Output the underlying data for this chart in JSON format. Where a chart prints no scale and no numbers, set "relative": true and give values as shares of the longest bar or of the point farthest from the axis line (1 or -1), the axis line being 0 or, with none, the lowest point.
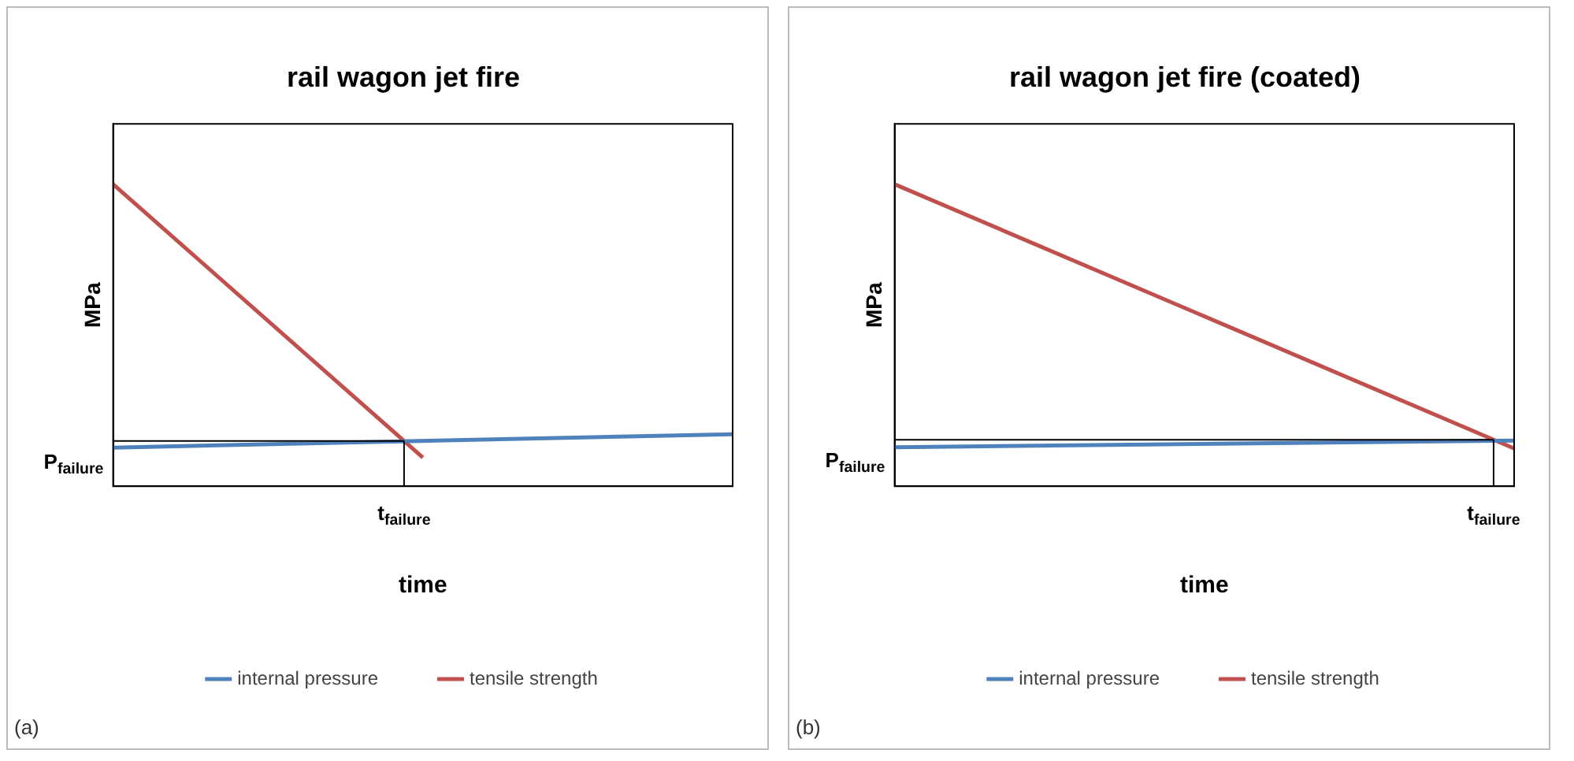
{
  "chart_data": [
    {
      "type": "line",
      "title": "rail wagon jet fire",
      "xlabel": "time",
      "ylabel": "MPa",
      "relative": true,
      "legend": "bottom",
      "marker": "none",
      "line_style": "solid",
      "categories": [
        null,
        null,
        null,
        null,
        null,
        null,
        null,
        null,
        null,
        null,
        null,
        null,
        null,
        null,
        null,
        null,
        null,
        null,
        null,
        null,
        null
      ],
      "series": [
        {
          "name": "internal pressure",
          "color": "#4f81bd",
          "values": [
            0.128,
            null,
            null,
            null,
            null,
            null,
            null,
            null,
            null,
            null,
            null,
            null,
            null,
            null,
            null,
            null,
            null,
            null,
            null,
            null,
            0.172
          ]
        },
        {
          "name": "tensile strength",
          "color": "#c0504d",
          "values": [
            1,
            null,
            null,
            null,
            null,
            null,
            null,
            null,
            null,
            null,
            0.095,
            null,
            null,
            null,
            null,
            null,
            null,
            null,
            null,
            null,
            null
          ]
        }
      ],
      "ref_lines": [
        {
          "axis": "y",
          "value": 0.15,
          "label": "P$_{failure}$",
          "color": "#000000"
        }
      ],
      "annotations": [
        {
          "text": "t$_{failure}$",
          "y": 0.15
        },
        "(a)"
      ]
    },
    {
      "type": "line",
      "title": "rail wagon jet fire (coated)",
      "xlabel": "time",
      "ylabel": "MPa",
      "relative": true,
      "legend": "bottom",
      "marker": "none",
      "line_style": "solid",
      "categories": [
        null,
        null,
        null,
        null,
        null,
        null,
        null,
        null,
        null,
        null,
        null,
        null,
        null,
        null,
        null,
        null,
        null,
        null,
        null,
        null,
        null
      ],
      "series": [
        {
          "name": "internal pressure",
          "color": "#4f81bd",
          "values": [
            0.129,
            null,
            null,
            null,
            null,
            null,
            null,
            null,
            null,
            null,
            null,
            null,
            null,
            null,
            null,
            null,
            null,
            null,
            null,
            null,
            0.151
          ]
        },
        {
          "name": "tensile strength",
          "color": "#c0504d",
          "values": [
            1,
            null,
            null,
            null,
            null,
            null,
            null,
            null,
            null,
            null,
            null,
            null,
            null,
            null,
            null,
            null,
            null,
            null,
            null,
            null,
            0.125
          ]
        }
      ],
      "ref_lines": [
        {
          "axis": "y",
          "value": 0.154,
          "label": "P$_{failure}$",
          "color": "#000000"
        }
      ],
      "annotations": [
        {
          "text": "t$_{failure}$",
          "y": 0.154
        },
        "(b)"
      ]
    }
  ]
}
